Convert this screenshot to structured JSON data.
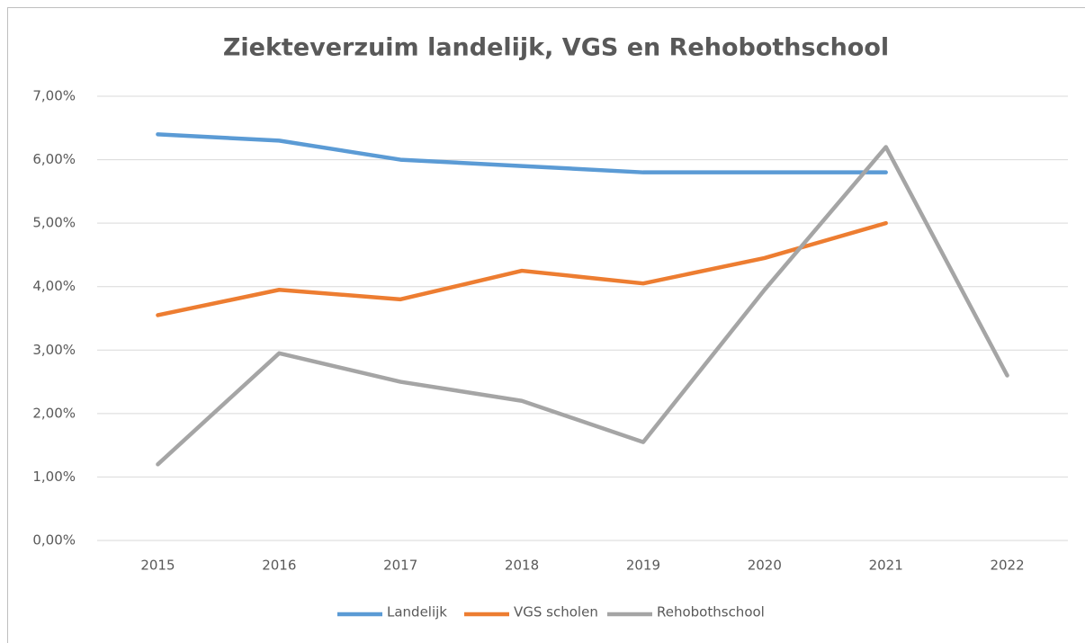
{
  "chart_data": {
    "type": "line",
    "title": "Ziekteverzuim landelijk, VGS en Rehobothschool",
    "categories": [
      "2015",
      "2016",
      "2017",
      "2018",
      "2019",
      "2020",
      "2021",
      "2022"
    ],
    "series": [
      {
        "name": "Landelijk",
        "color": "#5b9bd5",
        "values": [
          6.4,
          6.3,
          6.0,
          5.9,
          5.8,
          5.8,
          5.8,
          null
        ]
      },
      {
        "name": "VGS scholen",
        "color": "#ed7d31",
        "values": [
          3.55,
          3.95,
          3.8,
          4.25,
          4.05,
          4.45,
          5.0,
          null
        ]
      },
      {
        "name": "Rehobothschool",
        "color": "#a5a5a5",
        "values": [
          1.2,
          2.95,
          2.5,
          2.2,
          1.55,
          3.95,
          6.2,
          2.6
        ]
      }
    ],
    "ylim": [
      0,
      7
    ],
    "yticks": [
      {
        "value": 0,
        "label": "0,00%"
      },
      {
        "value": 1,
        "label": "1,00%"
      },
      {
        "value": 2,
        "label": "2,00%"
      },
      {
        "value": 3,
        "label": "3,00%"
      },
      {
        "value": 4,
        "label": "4,00%"
      },
      {
        "value": 5,
        "label": "5,00%"
      },
      {
        "value": 6,
        "label": "6,00%"
      },
      {
        "value": 7,
        "label": "7,00%"
      }
    ],
    "grid": true,
    "legend": "bottom"
  }
}
